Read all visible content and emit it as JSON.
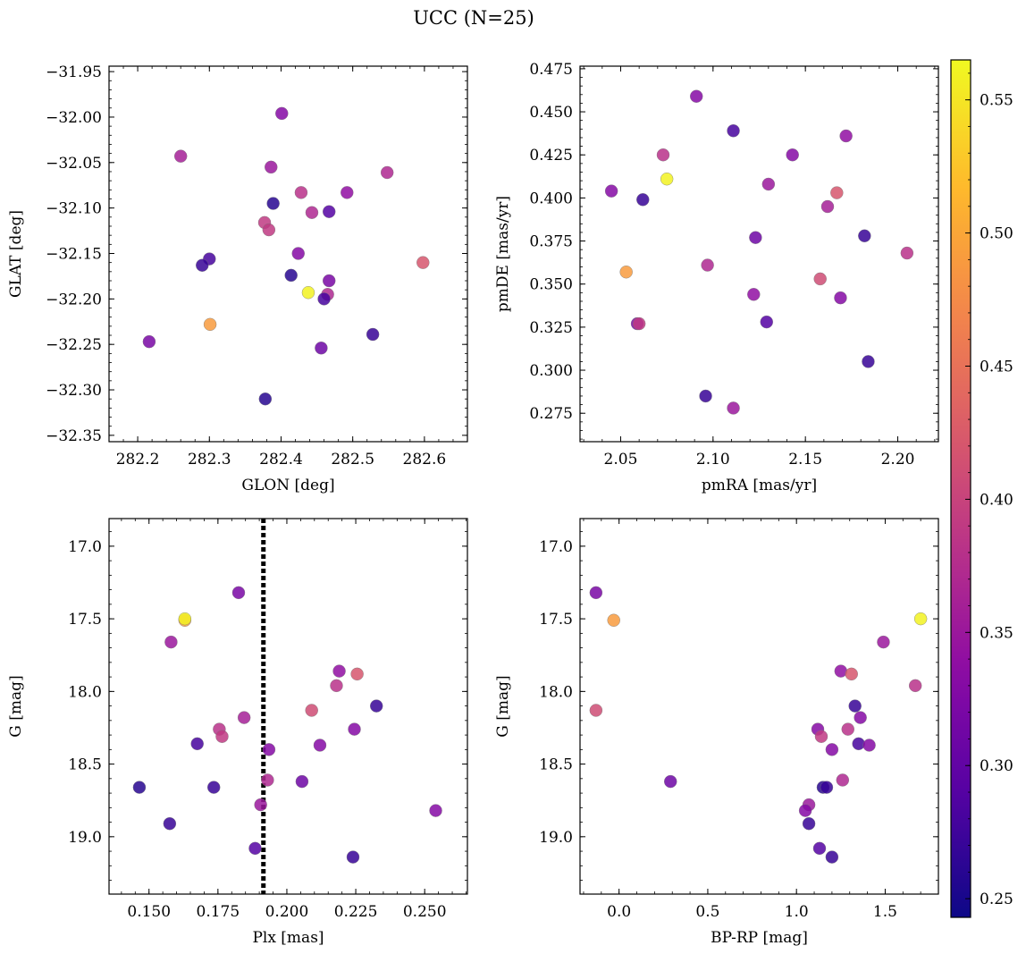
{
  "figure": {
    "title": "UCC (N=25)"
  },
  "colorbar": {
    "cmap": "plasma",
    "range": [
      0.243,
      0.565
    ],
    "ticks": [
      0.25,
      0.3,
      0.35,
      0.4,
      0.45,
      0.5,
      0.55
    ],
    "tick_labels": [
      "0.25",
      "0.30",
      "0.35",
      "0.40",
      "0.45",
      "0.50",
      "0.55"
    ]
  },
  "chart_data": [
    {
      "type": "scatter",
      "xlabel": "GLON [deg]",
      "ylabel": "GLAT [deg]",
      "xlim": [
        282.16,
        282.66
      ],
      "ylim": [
        -32.357,
        -31.944
      ],
      "xticks": [
        282.2,
        282.3,
        282.4,
        282.5,
        282.6
      ],
      "xtick_labels": [
        "282.2",
        "282.3",
        "282.4",
        "282.5",
        "282.6"
      ],
      "yticks": [
        -32.35,
        -32.3,
        -32.25,
        -32.2,
        -32.15,
        -32.1,
        -32.05,
        -32.0,
        -31.95
      ],
      "ytick_labels": [
        "−32.35",
        "−32.30",
        "−32.25",
        "−32.20",
        "−32.15",
        "−32.10",
        "−32.05",
        "−32.00",
        "−31.95"
      ],
      "points": [
        {
          "x": 282.401,
          "y": -31.996,
          "c": 0.33
        },
        {
          "x": 282.26,
          "y": -32.043,
          "c": 0.36
        },
        {
          "x": 282.386,
          "y": -32.055,
          "c": 0.35
        },
        {
          "x": 282.548,
          "y": -32.061,
          "c": 0.37
        },
        {
          "x": 282.428,
          "y": -32.083,
          "c": 0.38
        },
        {
          "x": 282.492,
          "y": -32.083,
          "c": 0.34
        },
        {
          "x": 282.389,
          "y": -32.095,
          "c": 0.26
        },
        {
          "x": 282.443,
          "y": -32.105,
          "c": 0.37
        },
        {
          "x": 282.467,
          "y": -32.104,
          "c": 0.29
        },
        {
          "x": 282.377,
          "y": -32.116,
          "c": 0.39
        },
        {
          "x": 282.383,
          "y": -32.124,
          "c": 0.39
        },
        {
          "x": 282.424,
          "y": -32.15,
          "c": 0.33
        },
        {
          "x": 282.3,
          "y": -32.156,
          "c": 0.28
        },
        {
          "x": 282.29,
          "y": -32.163,
          "c": 0.27
        },
        {
          "x": 282.414,
          "y": -32.174,
          "c": 0.26
        },
        {
          "x": 282.467,
          "y": -32.18,
          "c": 0.32
        },
        {
          "x": 282.438,
          "y": -32.193,
          "c": 0.56
        },
        {
          "x": 282.465,
          "y": -32.195,
          "c": 0.37
        },
        {
          "x": 282.46,
          "y": -32.2,
          "c": 0.28
        },
        {
          "x": 282.598,
          "y": -32.16,
          "c": 0.42
        },
        {
          "x": 282.301,
          "y": -32.228,
          "c": 0.49
        },
        {
          "x": 282.216,
          "y": -32.247,
          "c": 0.32
        },
        {
          "x": 282.456,
          "y": -32.254,
          "c": 0.31
        },
        {
          "x": 282.528,
          "y": -32.239,
          "c": 0.27
        },
        {
          "x": 282.378,
          "y": -32.31,
          "c": 0.26
        }
      ]
    },
    {
      "type": "scatter",
      "xlabel": "pmRA [mas/yr]",
      "ylabel": "pmDE [mas/yr]",
      "xlim": [
        2.028,
        2.222
      ],
      "ylim": [
        0.2585,
        0.4765
      ],
      "xticks": [
        2.05,
        2.1,
        2.15,
        2.2
      ],
      "xtick_labels": [
        "2.05",
        "2.10",
        "2.15",
        "2.20"
      ],
      "yticks": [
        0.275,
        0.3,
        0.325,
        0.35,
        0.375,
        0.4,
        0.425,
        0.45,
        0.475
      ],
      "ytick_labels": [
        "0.275",
        "0.300",
        "0.325",
        "0.350",
        "0.375",
        "0.400",
        "0.425",
        "0.450",
        "0.475"
      ],
      "points": [
        {
          "x": 2.091,
          "y": 0.459,
          "c": 0.33
        },
        {
          "x": 2.111,
          "y": 0.439,
          "c": 0.28
        },
        {
          "x": 2.172,
          "y": 0.436,
          "c": 0.34
        },
        {
          "x": 2.073,
          "y": 0.425,
          "c": 0.38
        },
        {
          "x": 2.143,
          "y": 0.425,
          "c": 0.33
        },
        {
          "x": 2.075,
          "y": 0.411,
          "c": 0.56
        },
        {
          "x": 2.13,
          "y": 0.408,
          "c": 0.35
        },
        {
          "x": 2.045,
          "y": 0.404,
          "c": 0.33
        },
        {
          "x": 2.167,
          "y": 0.403,
          "c": 0.42
        },
        {
          "x": 2.062,
          "y": 0.399,
          "c": 0.27
        },
        {
          "x": 2.162,
          "y": 0.395,
          "c": 0.36
        },
        {
          "x": 2.182,
          "y": 0.378,
          "c": 0.27
        },
        {
          "x": 2.123,
          "y": 0.377,
          "c": 0.31
        },
        {
          "x": 2.205,
          "y": 0.368,
          "c": 0.38
        },
        {
          "x": 2.097,
          "y": 0.361,
          "c": 0.37
        },
        {
          "x": 2.053,
          "y": 0.357,
          "c": 0.49
        },
        {
          "x": 2.158,
          "y": 0.353,
          "c": 0.41
        },
        {
          "x": 2.122,
          "y": 0.344,
          "c": 0.34
        },
        {
          "x": 2.169,
          "y": 0.342,
          "c": 0.33
        },
        {
          "x": 2.129,
          "y": 0.328,
          "c": 0.29
        },
        {
          "x": 2.059,
          "y": 0.327,
          "c": 0.32
        },
        {
          "x": 2.06,
          "y": 0.327,
          "c": 0.39
        },
        {
          "x": 2.184,
          "y": 0.305,
          "c": 0.27
        },
        {
          "x": 2.096,
          "y": 0.285,
          "c": 0.27
        },
        {
          "x": 2.111,
          "y": 0.278,
          "c": 0.35
        }
      ]
    },
    {
      "type": "scatter",
      "xlabel": "Plx [mas]",
      "ylabel": "G [mag]",
      "xlim": [
        0.1355,
        0.2655
      ],
      "ylim": [
        19.395,
        16.81
      ],
      "xticks": [
        0.15,
        0.175,
        0.2,
        0.225,
        0.25
      ],
      "xtick_labels": [
        "0.150",
        "0.175",
        "0.200",
        "0.225",
        "0.250"
      ],
      "yticks": [
        17.0,
        17.5,
        18.0,
        18.5,
        19.0
      ],
      "ytick_labels": [
        "17.0",
        "17.5",
        "18.0",
        "18.5",
        "19.0"
      ],
      "reference_line": {
        "x": 0.1915,
        "style": "dotted"
      },
      "points": [
        {
          "x": 0.1825,
          "y": 17.32,
          "c": 0.32
        },
        {
          "x": 0.163,
          "y": 17.51,
          "c": 0.49
        },
        {
          "x": 0.163,
          "y": 17.5,
          "c": 0.56
        },
        {
          "x": 0.158,
          "y": 17.66,
          "c": 0.35
        },
        {
          "x": 0.219,
          "y": 17.86,
          "c": 0.34
        },
        {
          "x": 0.2255,
          "y": 17.88,
          "c": 0.42
        },
        {
          "x": 0.218,
          "y": 17.96,
          "c": 0.38
        },
        {
          "x": 0.2325,
          "y": 18.1,
          "c": 0.27
        },
        {
          "x": 0.209,
          "y": 18.13,
          "c": 0.41
        },
        {
          "x": 0.1845,
          "y": 18.18,
          "c": 0.36
        },
        {
          "x": 0.1755,
          "y": 18.26,
          "c": 0.38
        },
        {
          "x": 0.1765,
          "y": 18.31,
          "c": 0.39
        },
        {
          "x": 0.2245,
          "y": 18.26,
          "c": 0.33
        },
        {
          "x": 0.1675,
          "y": 18.36,
          "c": 0.28
        },
        {
          "x": 0.212,
          "y": 18.37,
          "c": 0.33
        },
        {
          "x": 0.1935,
          "y": 18.4,
          "c": 0.33
        },
        {
          "x": 0.193,
          "y": 18.61,
          "c": 0.37
        },
        {
          "x": 0.2055,
          "y": 18.62,
          "c": 0.31
        },
        {
          "x": 0.1465,
          "y": 18.66,
          "c": 0.26
        },
        {
          "x": 0.1735,
          "y": 18.66,
          "c": 0.27
        },
        {
          "x": 0.1905,
          "y": 18.78,
          "c": 0.35
        },
        {
          "x": 0.254,
          "y": 18.82,
          "c": 0.33
        },
        {
          "x": 0.1575,
          "y": 18.91,
          "c": 0.27
        },
        {
          "x": 0.1885,
          "y": 19.08,
          "c": 0.29
        },
        {
          "x": 0.224,
          "y": 19.14,
          "c": 0.27
        }
      ]
    },
    {
      "type": "scatter",
      "xlabel": "BP-RP [mag]",
      "ylabel": "G [mag]",
      "xlim": [
        -0.22,
        1.8
      ],
      "ylim": [
        19.395,
        16.81
      ],
      "xticks": [
        0.0,
        0.5,
        1.0,
        1.5
      ],
      "xtick_labels": [
        "0.0",
        "0.5",
        "1.0",
        "1.5"
      ],
      "yticks": [
        17.0,
        17.5,
        18.0,
        18.5,
        19.0
      ],
      "ytick_labels": [
        "17.0",
        "17.5",
        "18.0",
        "18.5",
        "19.0"
      ],
      "points": [
        {
          "x": -0.13,
          "y": 17.32,
          "c": 0.32
        },
        {
          "x": -0.03,
          "y": 17.51,
          "c": 0.49
        },
        {
          "x": 1.7,
          "y": 17.5,
          "c": 0.56
        },
        {
          "x": 1.49,
          "y": 17.66,
          "c": 0.35
        },
        {
          "x": 1.25,
          "y": 17.86,
          "c": 0.34
        },
        {
          "x": 1.31,
          "y": 17.88,
          "c": 0.42
        },
        {
          "x": 1.67,
          "y": 17.96,
          "c": 0.38
        },
        {
          "x": 1.33,
          "y": 18.1,
          "c": 0.27
        },
        {
          "x": -0.13,
          "y": 18.13,
          "c": 0.41
        },
        {
          "x": 1.36,
          "y": 18.18,
          "c": 0.33
        },
        {
          "x": 1.29,
          "y": 18.26,
          "c": 0.38
        },
        {
          "x": 1.12,
          "y": 18.26,
          "c": 0.33
        },
        {
          "x": 1.14,
          "y": 18.31,
          "c": 0.39
        },
        {
          "x": 1.35,
          "y": 18.36,
          "c": 0.28
        },
        {
          "x": 1.41,
          "y": 18.37,
          "c": 0.33
        },
        {
          "x": 1.2,
          "y": 18.4,
          "c": 0.33
        },
        {
          "x": 1.26,
          "y": 18.61,
          "c": 0.37
        },
        {
          "x": 0.29,
          "y": 18.62,
          "c": 0.31
        },
        {
          "x": 1.15,
          "y": 18.66,
          "c": 0.26
        },
        {
          "x": 1.17,
          "y": 18.66,
          "c": 0.27
        },
        {
          "x": 1.07,
          "y": 18.78,
          "c": 0.35
        },
        {
          "x": 1.05,
          "y": 18.82,
          "c": 0.33
        },
        {
          "x": 1.07,
          "y": 18.91,
          "c": 0.27
        },
        {
          "x": 1.13,
          "y": 19.08,
          "c": 0.29
        },
        {
          "x": 1.2,
          "y": 19.14,
          "c": 0.27
        }
      ]
    }
  ]
}
